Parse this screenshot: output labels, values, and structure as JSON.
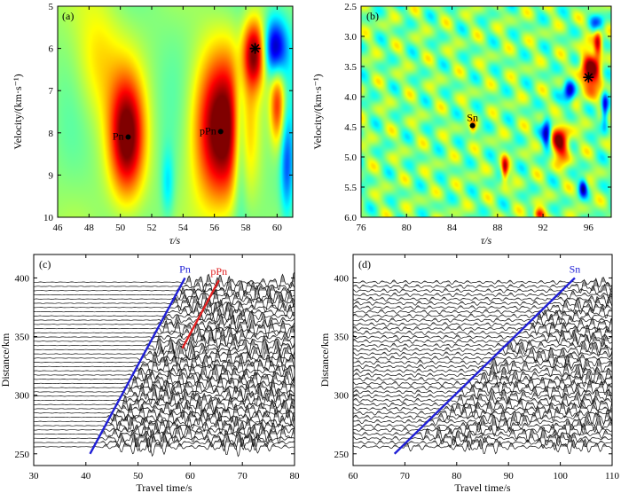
{
  "chart_data": [
    {
      "panel": "(a)",
      "type": "heatmap",
      "xlabel": "τ/s",
      "ylabel": "Velocity/(km·s⁻¹)",
      "xlim": [
        46,
        61
      ],
      "ylim": [
        5,
        10
      ],
      "y_inverted": true,
      "xticks": [
        "46",
        "48",
        "50",
        "52",
        "54",
        "56",
        "58",
        "60"
      ],
      "yticks": [
        "5",
        "6",
        "7",
        "8",
        "9",
        "10"
      ],
      "points": [
        {
          "label": "Pn",
          "tau": 50.5,
          "v": 8.1,
          "marker": "dot"
        },
        {
          "label": "pPn",
          "tau": 56.4,
          "v": 7.97,
          "marker": "dot"
        },
        {
          "label": "",
          "tau": 58.6,
          "v": 6.0,
          "marker": "star"
        }
      ],
      "blobs": [
        {
          "tau": 50.4,
          "v": 8.1,
          "rt": 1.1,
          "rv": 1.4,
          "w": 1.0
        },
        {
          "tau": 56.4,
          "v": 7.9,
          "rt": 1.8,
          "rv": 1.8,
          "w": 1.1
        },
        {
          "tau": 58.6,
          "v": 6.1,
          "rt": 0.8,
          "rv": 0.8,
          "w": 1.0
        },
        {
          "tau": 60.0,
          "v": 7.3,
          "rt": 0.5,
          "rv": 1.0,
          "w": 0.8
        },
        {
          "tau": 59.8,
          "v": 6.0,
          "rt": 0.8,
          "rv": 0.7,
          "w": -1.0
        },
        {
          "tau": 57.6,
          "v": 8.0,
          "rt": 0.5,
          "rv": 1.8,
          "w": -0.6
        },
        {
          "tau": 53.0,
          "v": 9.2,
          "rt": 0.4,
          "rv": 0.8,
          "w": -0.3
        },
        {
          "tau": 60.6,
          "v": 8.8,
          "rt": 0.4,
          "rv": 1.2,
          "w": -0.5
        },
        {
          "tau": 48.5,
          "v": 6.3,
          "rt": 1.5,
          "rv": 1.5,
          "w": 0.3
        }
      ]
    },
    {
      "panel": "(b)",
      "type": "heatmap",
      "xlabel": "τ/s",
      "ylabel": "Velocity/(km·s⁻¹)",
      "xlim": [
        76,
        98
      ],
      "ylim": [
        2.5,
        6.0
      ],
      "y_inverted": true,
      "xticks": [
        "76",
        "80",
        "84",
        "88",
        "92",
        "96"
      ],
      "yticks": [
        "2.5",
        "3.0",
        "3.5",
        "4.0",
        "4.5",
        "5.0",
        "5.5",
        "6.0"
      ],
      "points": [
        {
          "label": "Sn",
          "tau": 85.8,
          "v": 4.48,
          "marker": "dot"
        },
        {
          "label": "",
          "tau": 96.0,
          "v": 3.68,
          "marker": "star"
        }
      ],
      "blobs": [
        {
          "tau": 96.1,
          "v": 3.6,
          "rt": 0.9,
          "rv": 0.35,
          "w": 1.0
        },
        {
          "tau": 93.5,
          "v": 4.75,
          "rt": 0.8,
          "rv": 0.3,
          "w": 0.95
        },
        {
          "tau": 85.8,
          "v": 4.5,
          "rt": 0.3,
          "rv": 0.12,
          "w": 0.4
        },
        {
          "tau": 94.3,
          "v": 3.9,
          "rt": 0.5,
          "rv": 0.2,
          "w": -0.9
        },
        {
          "tau": 92.3,
          "v": 4.6,
          "rt": 0.4,
          "rv": 0.25,
          "w": -0.9
        },
        {
          "tau": 95.5,
          "v": 5.5,
          "rt": 0.35,
          "rv": 0.15,
          "w": -0.8
        },
        {
          "tau": 88.6,
          "v": 5.2,
          "rt": 0.3,
          "rv": 0.2,
          "w": 0.8
        },
        {
          "tau": 91.6,
          "v": 5.95,
          "rt": 0.5,
          "rv": 0.1,
          "w": 0.9
        },
        {
          "tau": 96.8,
          "v": 3.1,
          "rt": 0.35,
          "rv": 0.25,
          "w": 0.8
        },
        {
          "tau": 97.4,
          "v": 4.2,
          "rt": 0.3,
          "rv": 0.3,
          "w": -0.8
        },
        {
          "tau": 96.8,
          "v": 2.75,
          "rt": 0.6,
          "rv": 0.15,
          "w": -0.5
        }
      ]
    },
    {
      "panel": "(c)",
      "type": "line",
      "xlabel": "Travel time/s",
      "ylabel": "Distance/km",
      "xlim": [
        30,
        80
      ],
      "ylim": [
        240,
        420
      ],
      "xticks": [
        "30",
        "40",
        "50",
        "60",
        "70",
        "80"
      ],
      "yticks": [
        "250",
        "300",
        "350",
        "400"
      ],
      "traces": {
        "dist_min": 256,
        "dist_max": 400,
        "step": 3.6
      },
      "series": [
        {
          "name": "Pn",
          "color": "#1f1fd6",
          "x": [
            40.8,
            59.0
          ],
          "y": [
            250,
            400
          ]
        },
        {
          "name": "pPn",
          "color": "#e02020",
          "x": [
            58.5,
            65.5
          ],
          "y": [
            340,
            398
          ]
        }
      ]
    },
    {
      "panel": "(d)",
      "type": "line",
      "xlabel": "Travel time/s",
      "ylabel": "Distance/km",
      "xlim": [
        60,
        110
      ],
      "ylim": [
        240,
        420
      ],
      "xticks": [
        "60",
        "70",
        "80",
        "90",
        "100",
        "110"
      ],
      "yticks": [
        "250",
        "300",
        "350",
        "400"
      ],
      "traces": {
        "dist_min": 256,
        "dist_max": 400,
        "step": 3.6
      },
      "series": [
        {
          "name": "Sn",
          "color": "#1f1fd6",
          "x": [
            68.0,
            102.8
          ],
          "y": [
            250,
            400
          ]
        }
      ]
    }
  ]
}
